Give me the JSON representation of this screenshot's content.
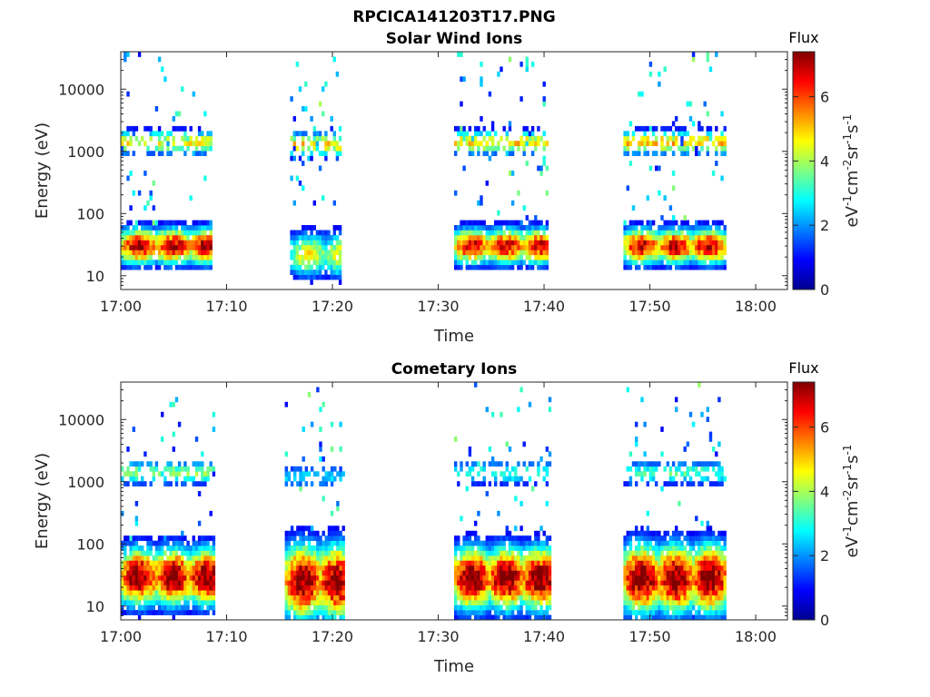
{
  "figure": {
    "title": "RPCICA141203T17.PNG"
  },
  "colorbar": {
    "title": "Flux",
    "label_base": "eV",
    "label_sup1": "-1",
    "label_mid1": "cm",
    "label_sup2": "-2",
    "label_mid2": "sr",
    "label_sup3": "-1",
    "label_mid3": "s",
    "label_sup4": "-1",
    "ticks": [
      "0",
      "2",
      "4",
      "6"
    ],
    "range": [
      0,
      7.4
    ],
    "colormap": "jet"
  },
  "chart_data": [
    {
      "type": "heatmap",
      "title": "Solar Wind Ions",
      "xlabel": "Time",
      "ylabel": "Energy (eV)",
      "x_ticks": [
        "17:00",
        "17:10",
        "17:20",
        "17:30",
        "17:40",
        "17:50",
        "18:00"
      ],
      "x_range_minutes": [
        0,
        63
      ],
      "y_ticks": [
        "10",
        "100",
        "1000",
        "10000"
      ],
      "y_range_eV": [
        6,
        40000
      ],
      "y_scale": "log",
      "z_range": [
        0,
        7.4
      ],
      "bursts": [
        {
          "start_min": 0.0,
          "end_min": 8.5,
          "peak_eV": 30,
          "peak_flux": 6.5,
          "spread": 0.28,
          "secondary_eV": 1400,
          "secondary_flux": 4.5,
          "scatter": 0.55
        },
        {
          "start_min": 16.0,
          "end_min": 20.8,
          "peak_eV": 22,
          "peak_flux": 4.2,
          "spread": 0.35,
          "secondary_eV": 1300,
          "secondary_flux": 4.8,
          "scatter": 0.6
        },
        {
          "start_min": 31.5,
          "end_min": 40.2,
          "peak_eV": 30,
          "peak_flux": 6.2,
          "spread": 0.28,
          "secondary_eV": 1400,
          "secondary_flux": 4.8,
          "scatter": 0.55
        },
        {
          "start_min": 47.5,
          "end_min": 57.0,
          "peak_eV": 30,
          "peak_flux": 6.3,
          "spread": 0.28,
          "secondary_eV": 1400,
          "secondary_flux": 5.0,
          "scatter": 0.6
        }
      ]
    },
    {
      "type": "heatmap",
      "title": "Cometary Ions",
      "xlabel": "Time",
      "ylabel": "Energy (eV)",
      "x_ticks": [
        "17:00",
        "17:10",
        "17:20",
        "17:30",
        "17:40",
        "17:50",
        "18:00"
      ],
      "x_range_minutes": [
        0,
        63
      ],
      "y_ticks": [
        "10",
        "100",
        "1000",
        "10000"
      ],
      "y_range_eV": [
        6,
        40000
      ],
      "y_scale": "log",
      "z_range": [
        0,
        7.4
      ],
      "bursts": [
        {
          "start_min": 0.0,
          "end_min": 8.8,
          "peak_eV": 30,
          "peak_flux": 7.0,
          "spread": 0.45,
          "secondary_eV": 1400,
          "secondary_flux": 3.8,
          "scatter": 0.35
        },
        {
          "start_min": 15.5,
          "end_min": 21.0,
          "peak_eV": 25,
          "peak_flux": 6.8,
          "spread": 0.6,
          "secondary_eV": 1200,
          "secondary_flux": 2.5,
          "scatter": 0.5
        },
        {
          "start_min": 31.5,
          "end_min": 40.5,
          "peak_eV": 28,
          "peak_flux": 7.0,
          "spread": 0.5,
          "secondary_eV": 1400,
          "secondary_flux": 3.2,
          "scatter": 0.4
        },
        {
          "start_min": 47.5,
          "end_min": 57.0,
          "peak_eV": 28,
          "peak_flux": 7.0,
          "spread": 0.55,
          "secondary_eV": 1400,
          "secondary_flux": 3.3,
          "scatter": 0.45
        }
      ]
    }
  ]
}
